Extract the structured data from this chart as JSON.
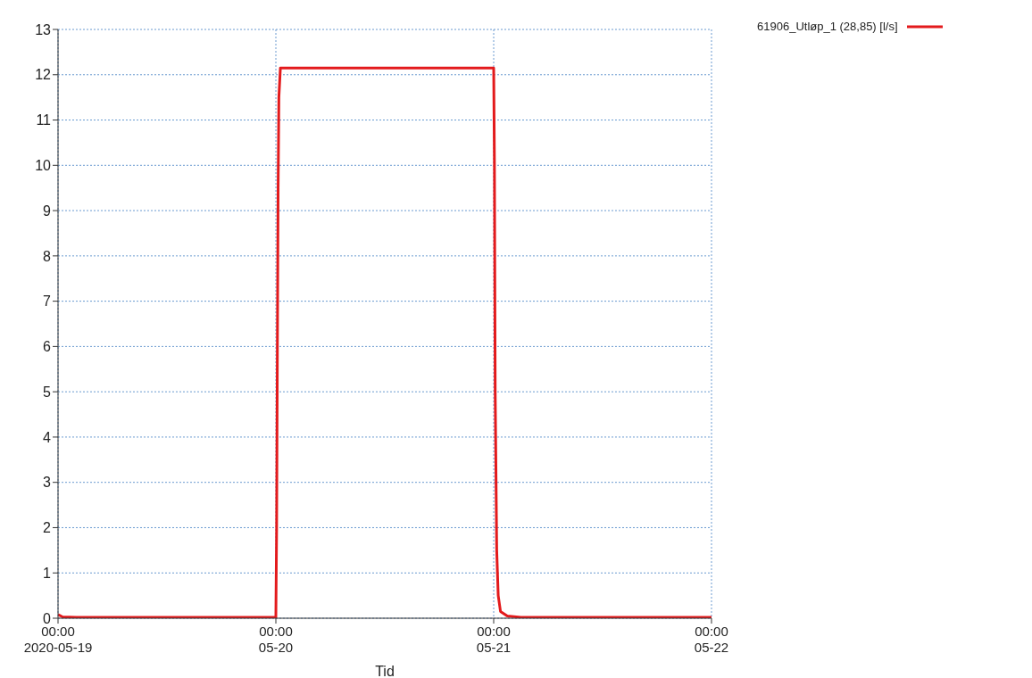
{
  "chart_data": {
    "type": "line",
    "xlabel": "Tid",
    "x": [
      "2020-05-19T00:00",
      "2020-05-19T00:30",
      "2020-05-19T02:00",
      "2020-05-20T00:00",
      "2020-05-20T00:05",
      "2020-05-20T00:10",
      "2020-05-20T00:15",
      "2020-05-20T00:20",
      "2020-05-20T00:30",
      "2020-05-21T00:00",
      "2020-05-21T00:05",
      "2020-05-21T00:10",
      "2020-05-21T00:20",
      "2020-05-21T00:30",
      "2020-05-21T00:45",
      "2020-05-21T01:30",
      "2020-05-21T03:00",
      "2020-05-22T00:00"
    ],
    "series": [
      {
        "name": "61906_Utløp_1 (28,85) [l/s]",
        "color": "#e31a1c",
        "values": [
          0.08,
          0.03,
          0.02,
          0.02,
          2,
          6,
          9.5,
          11.5,
          12.15,
          12.15,
          10,
          5,
          1.5,
          0.5,
          0.15,
          0.05,
          0.02,
          0.02
        ]
      }
    ],
    "xlim": [
      "2020-05-19T00:00",
      "2020-05-22T00:00"
    ],
    "xticks": [
      {
        "value": "2020-05-19T00:00",
        "label": "00:00\n2020-05-19"
      },
      {
        "value": "2020-05-20T00:00",
        "label": "00:00\n05-20"
      },
      {
        "value": "2020-05-21T00:00",
        "label": "00:00\n05-21"
      },
      {
        "value": "2020-05-22T00:00",
        "label": "00:00\n05-22"
      }
    ],
    "ylim": [
      0,
      13
    ],
    "yticks": [
      0,
      1,
      2,
      3,
      4,
      5,
      6,
      7,
      8,
      9,
      10,
      11,
      12,
      13
    ],
    "grid": true,
    "legend": "top right",
    "marker": "none",
    "line_style": "solid"
  }
}
